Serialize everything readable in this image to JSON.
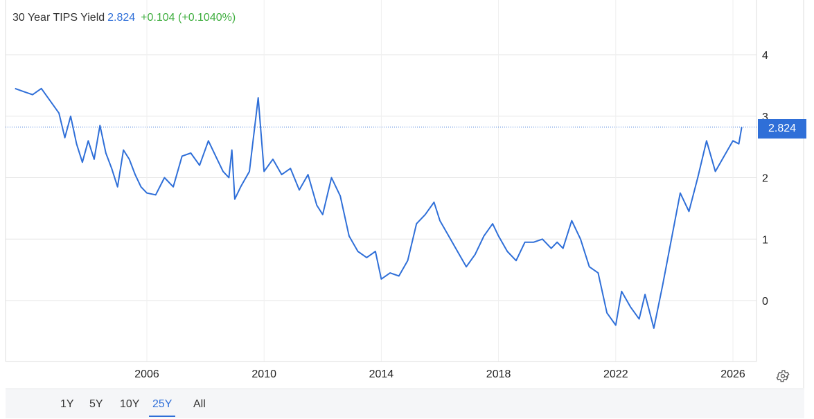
{
  "header": {
    "title": "30 Year TIPS Yield",
    "value": "2.824",
    "change": "+0.104 (+0.1040%)"
  },
  "last_value_label": "2.824",
  "range_buttons": [
    {
      "label": "1Y",
      "active": false
    },
    {
      "label": "5Y",
      "active": false
    },
    {
      "label": "10Y",
      "active": false
    },
    {
      "label": "25Y",
      "active": true
    },
    {
      "label": "All",
      "active": false
    }
  ],
  "icons": {
    "settings": "gear-icon"
  },
  "colors": {
    "line": "#2f6fd8",
    "change_positive": "#3fae3f",
    "value": "#2f6fd8"
  },
  "chart_data": {
    "type": "line",
    "title": "30 Year TIPS Yield",
    "xlabel": "",
    "ylabel": "",
    "x_ticks": [
      "2006",
      "2010",
      "2014",
      "2018",
      "2022",
      "2026"
    ],
    "y_ticks": [
      "0",
      "1",
      "2",
      "3",
      "4"
    ],
    "ylim": [
      -1.0,
      4.9
    ],
    "xlim": [
      2001.3,
      2027.3
    ],
    "grid": true,
    "legend": "none",
    "last_value": 2.824,
    "series": [
      {
        "name": "30 Year TIPS Yield",
        "x": [
          2001.5,
          2001.8,
          2002.1,
          2002.4,
          2002.7,
          2003.0,
          2003.2,
          2003.4,
          2003.6,
          2003.8,
          2004.0,
          2004.2,
          2004.4,
          2004.6,
          2004.8,
          2005.0,
          2005.2,
          2005.4,
          2005.6,
          2005.8,
          2006.0,
          2006.3,
          2006.6,
          2006.9,
          2007.2,
          2007.5,
          2007.8,
          2008.1,
          2008.4,
          2008.6,
          2008.8,
          2008.9,
          2009.0,
          2009.2,
          2009.5,
          2009.8,
          2010.0,
          2010.3,
          2010.6,
          2010.9,
          2011.2,
          2011.5,
          2011.8,
          2012.0,
          2012.3,
          2012.6,
          2012.9,
          2013.2,
          2013.5,
          2013.8,
          2014.0,
          2014.3,
          2014.6,
          2014.9,
          2015.2,
          2015.5,
          2015.8,
          2016.0,
          2016.3,
          2016.6,
          2016.9,
          2017.2,
          2017.5,
          2017.8,
          2018.0,
          2018.3,
          2018.6,
          2018.9,
          2019.2,
          2019.5,
          2019.8,
          2020.0,
          2020.2,
          2020.5,
          2020.8,
          2021.1,
          2021.4,
          2021.7,
          2022.0,
          2022.2,
          2022.5,
          2022.8,
          2023.0,
          2023.3,
          2023.6,
          2023.9,
          2024.2,
          2024.5,
          2024.8,
          2025.1,
          2025.4,
          2025.7,
          2026.0,
          2026.2,
          2026.3
        ],
        "values": [
          3.45,
          3.4,
          3.35,
          3.45,
          3.25,
          3.05,
          2.65,
          3.0,
          2.55,
          2.25,
          2.6,
          2.3,
          2.85,
          2.4,
          2.15,
          1.85,
          2.45,
          2.3,
          2.05,
          1.85,
          1.75,
          1.72,
          2.0,
          1.85,
          2.35,
          2.4,
          2.2,
          2.6,
          2.3,
          2.1,
          2.0,
          2.45,
          1.65,
          1.85,
          2.1,
          3.3,
          2.1,
          2.3,
          2.05,
          2.15,
          1.8,
          2.05,
          1.55,
          1.4,
          2.0,
          1.7,
          1.05,
          0.8,
          0.7,
          0.8,
          0.35,
          0.45,
          0.4,
          0.65,
          1.25,
          1.4,
          1.6,
          1.3,
          1.05,
          0.8,
          0.55,
          0.75,
          1.05,
          1.25,
          1.05,
          0.8,
          0.65,
          0.95,
          0.95,
          1.0,
          0.85,
          0.95,
          0.85,
          1.3,
          1.0,
          0.55,
          0.45,
          -0.2,
          -0.4,
          0.15,
          -0.1,
          -0.3,
          0.1,
          -0.45,
          0.25,
          1.0,
          1.75,
          1.45,
          2.0,
          2.6,
          2.1,
          2.35,
          2.6,
          2.55,
          2.824
        ]
      }
    ]
  }
}
